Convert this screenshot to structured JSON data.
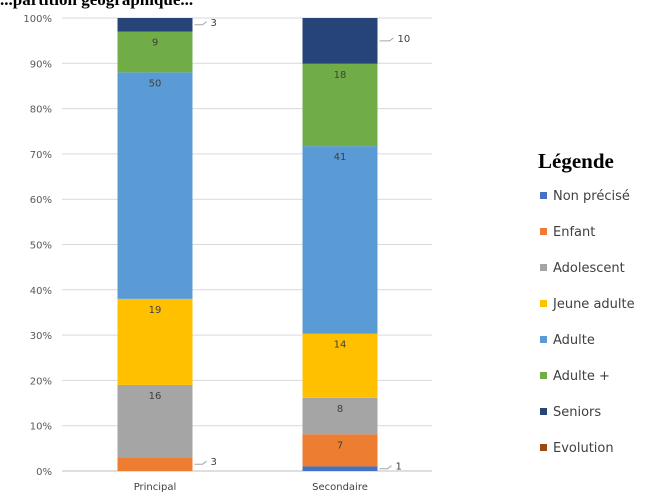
{
  "chart_data": {
    "type": "bar",
    "stacked": "percent",
    "title": "...partition géographique...",
    "categories": [
      "Principal",
      "Secondaire"
    ],
    "y_ticks": [
      "0%",
      "10%",
      "20%",
      "30%",
      "40%",
      "50%",
      "60%",
      "70%",
      "80%",
      "90%",
      "100%"
    ],
    "ylim": [
      0,
      100
    ],
    "grid": true,
    "legend_title": "Légende",
    "legend_position": "right",
    "series": [
      {
        "name": "Non précisé",
        "color": "#4472C4",
        "values": [
          0,
          1
        ]
      },
      {
        "name": "Enfant",
        "color": "#ED7D31",
        "values": [
          3,
          7
        ]
      },
      {
        "name": "Adolescent",
        "color": "#A5A5A5",
        "values": [
          16,
          8
        ]
      },
      {
        "name": "Jeune adulte",
        "color": "#FFC000",
        "values": [
          19,
          14
        ]
      },
      {
        "name": "Adulte",
        "color": "#5B9BD5",
        "values": [
          50,
          41
        ]
      },
      {
        "name": "Adulte +",
        "color": "#70AD47",
        "values": [
          9,
          18
        ]
      },
      {
        "name": "Seniors",
        "color": "#264478",
        "values": [
          3,
          10
        ]
      },
      {
        "name": "Evolution",
        "color": "#9E480E",
        "values": [
          0,
          0
        ]
      }
    ]
  }
}
